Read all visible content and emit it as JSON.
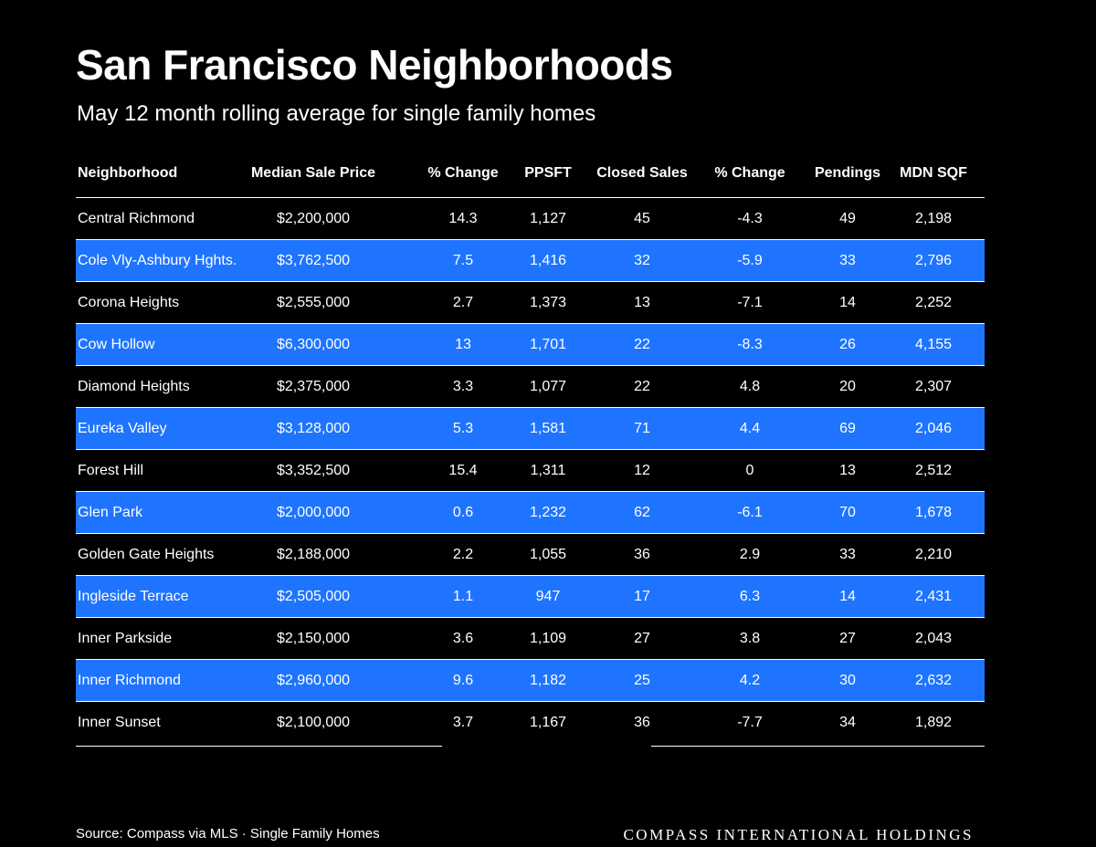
{
  "title": "San Francisco Neighborhoods",
  "subtitle": "May 12 month rolling average for single family homes",
  "colors": {
    "background": "#000000",
    "text": "#ffffff",
    "row_highlight": "#1e74ff"
  },
  "chart_data": {
    "type": "table",
    "columns": [
      "Neighborhood",
      "Median Sale Price",
      "% Change",
      "PPSFT",
      "Closed Sales",
      "% Change",
      "Pendings",
      "MDN SQF"
    ],
    "rows": [
      [
        "Central Richmond",
        "$2,200,000",
        "14.3",
        "1,127",
        "45",
        "-4.3",
        "49",
        "2,198"
      ],
      [
        "Cole Vly-Ashbury Hghts.",
        "$3,762,500",
        "7.5",
        "1,416",
        "32",
        "-5.9",
        "33",
        "2,796"
      ],
      [
        "Corona Heights",
        "$2,555,000",
        "2.7",
        "1,373",
        "13",
        "-7.1",
        "14",
        "2,252"
      ],
      [
        "Cow Hollow",
        "$6,300,000",
        "13",
        "1,701",
        "22",
        "-8.3",
        "26",
        "4,155"
      ],
      [
        "Diamond Heights",
        "$2,375,000",
        "3.3",
        "1,077",
        "22",
        "4.8",
        "20",
        "2,307"
      ],
      [
        "Eureka Valley",
        "$3,128,000",
        "5.3",
        "1,581",
        "71",
        "4.4",
        "69",
        "2,046"
      ],
      [
        "Forest Hill",
        "$3,352,500",
        "15.4",
        "1,311",
        "12",
        "0",
        "13",
        "2,512"
      ],
      [
        "Glen Park",
        "$2,000,000",
        "0.6",
        "1,232",
        "62",
        "-6.1",
        "70",
        "1,678"
      ],
      [
        "Golden Gate Heights",
        "$2,188,000",
        "2.2",
        "1,055",
        "36",
        "2.9",
        "33",
        "2,210"
      ],
      [
        "Ingleside Terrace",
        "$2,505,000",
        "1.1",
        "947",
        "17",
        "6.3",
        "14",
        "2,431"
      ],
      [
        "Inner Parkside",
        "$2,150,000",
        "3.6",
        "1,109",
        "27",
        "3.8",
        "27",
        "2,043"
      ],
      [
        "Inner Richmond",
        "$2,960,000",
        "9.6",
        "1,182",
        "25",
        "4.2",
        "30",
        "2,632"
      ],
      [
        "Inner Sunset",
        "$2,100,000",
        "3.7",
        "1,167",
        "36",
        "-7.7",
        "34",
        "1,892"
      ]
    ],
    "highlighted_rows": "alternate"
  },
  "footer": {
    "source": "Source: Compass via MLS · Single Family Homes",
    "brand": "COMPASS INTERNATIONAL HOLDINGS"
  }
}
